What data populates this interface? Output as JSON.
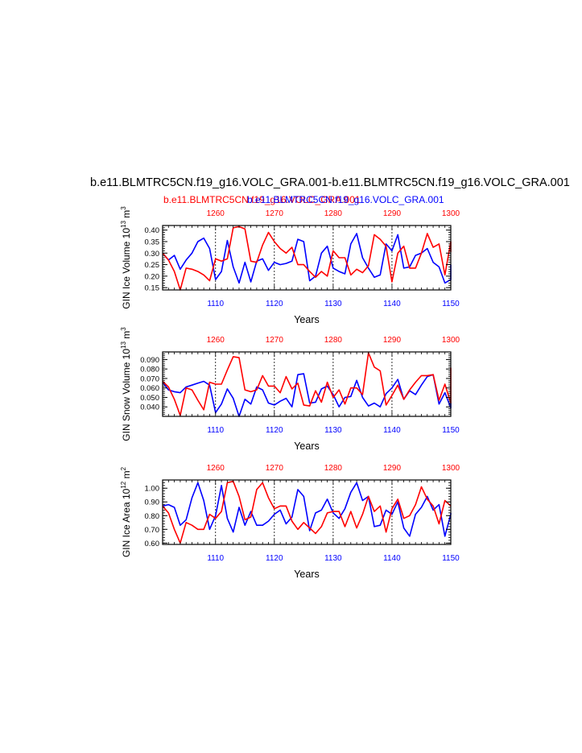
{
  "main_title": "b.e11.BLMTRC5CN.f19_g16.VOLC_GRA.001-b.e11.BLMTRC5CN.f19_g16.VOLC_GRA.001",
  "subtitle_red": "b.e11.BLMTRC5CN.f19_g16.VOLC_GRA.001",
  "subtitle_blue": "b.e11.BLMTRC5CN.f19_g16.VOLC_GRA.001",
  "colors": {
    "red": "#ff0000",
    "blue": "#0000ff"
  },
  "chart_data": [
    {
      "type": "line",
      "ylabel": "GIN Ice Volume 10",
      "ylabel_sup": "13",
      "ylabel_unit": " m",
      "ylabel_unit_sup": "3",
      "xlabel": "Years",
      "ylim": [
        0.14,
        0.42
      ],
      "yticks": [
        "0.15",
        "0.20",
        "0.25",
        "0.30",
        "0.35",
        "0.40"
      ],
      "ytick_values": [
        0.15,
        0.2,
        0.25,
        0.3,
        0.35,
        0.4
      ],
      "bottom_axis": {
        "range": [
          1101,
          1150
        ],
        "ticks": [
          "1110",
          "1120",
          "1130",
          "1140",
          "1150"
        ],
        "tick_values": [
          1110,
          1120,
          1130,
          1140,
          1150
        ]
      },
      "top_axis": {
        "range": [
          1251,
          1300
        ],
        "ticks": [
          "1260",
          "1270",
          "1280",
          "1290",
          "1300"
        ],
        "tick_values": [
          1260,
          1270,
          1280,
          1290,
          1300
        ]
      },
      "series": [
        {
          "color": "blue",
          "axis": "bottom",
          "x_start": 1101,
          "values": [
            0.3,
            0.27,
            0.29,
            0.23,
            0.27,
            0.3,
            0.35,
            0.365,
            0.32,
            0.185,
            0.22,
            0.355,
            0.24,
            0.17,
            0.26,
            0.175,
            0.265,
            0.275,
            0.225,
            0.26,
            0.25,
            0.255,
            0.265,
            0.36,
            0.35,
            0.18,
            0.2,
            0.3,
            0.33,
            0.235,
            0.22,
            0.21,
            0.34,
            0.385,
            0.28,
            0.235,
            0.195,
            0.205,
            0.34,
            0.31,
            0.38,
            0.235,
            0.24,
            0.29,
            0.3,
            0.32,
            0.26,
            0.24,
            0.17,
            0.185,
            0.25
          ]
        },
        {
          "color": "red",
          "axis": "top",
          "x_start": 1251,
          "values": [
            0.3,
            0.27,
            0.22,
            0.14,
            0.235,
            0.23,
            0.22,
            0.205,
            0.18,
            0.275,
            0.265,
            0.275,
            0.41,
            0.415,
            0.405,
            0.265,
            0.26,
            0.335,
            0.39,
            0.35,
            0.32,
            0.3,
            0.325,
            0.25,
            0.25,
            0.22,
            0.195,
            0.22,
            0.2,
            0.31,
            0.28,
            0.28,
            0.205,
            0.23,
            0.215,
            0.245,
            0.38,
            0.36,
            0.33,
            0.175,
            0.3,
            0.33,
            0.235,
            0.235,
            0.3,
            0.385,
            0.325,
            0.34,
            0.205,
            0.35,
            0.305
          ]
        }
      ]
    },
    {
      "type": "line",
      "ylabel": "GIN Snow Volume 10",
      "ylabel_sup": "13",
      "ylabel_unit": " m",
      "ylabel_unit_sup": "3",
      "xlabel": "Years",
      "ylim": [
        0.03,
        0.098
      ],
      "yticks": [
        "0.040",
        "0.050",
        "0.060",
        "0.070",
        "0.080",
        "0.090"
      ],
      "ytick_values": [
        0.04,
        0.05,
        0.06,
        0.07,
        0.08,
        0.09
      ],
      "bottom_axis": {
        "range": [
          1101,
          1150
        ],
        "ticks": [
          "1110",
          "1120",
          "1130",
          "1140",
          "1150"
        ],
        "tick_values": [
          1110,
          1120,
          1130,
          1140,
          1150
        ]
      },
      "top_axis": {
        "range": [
          1251,
          1300
        ],
        "ticks": [
          "1260",
          "1270",
          "1280",
          "1290",
          "1300"
        ],
        "tick_values": [
          1260,
          1270,
          1280,
          1290,
          1300
        ]
      },
      "series": [
        {
          "color": "blue",
          "axis": "bottom",
          "x_start": 1101,
          "values": [
            0.066,
            0.058,
            0.056,
            0.055,
            0.061,
            0.063,
            0.065,
            0.067,
            0.063,
            0.034,
            0.043,
            0.059,
            0.049,
            0.03,
            0.048,
            0.043,
            0.061,
            0.058,
            0.044,
            0.042,
            0.046,
            0.049,
            0.04,
            0.074,
            0.075,
            0.044,
            0.045,
            0.059,
            0.062,
            0.053,
            0.04,
            0.05,
            0.051,
            0.068,
            0.05,
            0.041,
            0.044,
            0.04,
            0.054,
            0.06,
            0.069,
            0.048,
            0.057,
            0.053,
            0.063,
            0.072,
            0.074,
            0.043,
            0.055,
            0.039,
            0.04,
            0.044
          ]
        },
        {
          "color": "red",
          "axis": "top",
          "x_start": 1251,
          "values": [
            0.067,
            0.061,
            0.048,
            0.031,
            0.06,
            0.058,
            0.047,
            0.037,
            0.066,
            0.064,
            0.064,
            0.079,
            0.093,
            0.092,
            0.058,
            0.056,
            0.058,
            0.073,
            0.062,
            0.062,
            0.055,
            0.072,
            0.059,
            0.065,
            0.042,
            0.041,
            0.057,
            0.045,
            0.066,
            0.05,
            0.058,
            0.043,
            0.06,
            0.06,
            0.053,
            0.097,
            0.082,
            0.078,
            0.042,
            0.052,
            0.063,
            0.048,
            0.058,
            0.066,
            0.073,
            0.073,
            0.074,
            0.047,
            0.064,
            0.044,
            0.081,
            0.06
          ]
        }
      ]
    },
    {
      "type": "line",
      "ylabel": "GIN Ice Area 10",
      "ylabel_sup": "12",
      "ylabel_unit": " m",
      "ylabel_unit_sup": "2",
      "xlabel": "Years",
      "ylim": [
        0.59,
        1.06
      ],
      "yticks": [
        "0.60",
        "0.70",
        "0.80",
        "0.90",
        "1.00"
      ],
      "ytick_values": [
        0.6,
        0.7,
        0.8,
        0.9,
        1.0
      ],
      "bottom_axis": {
        "range": [
          1101,
          1150
        ],
        "ticks": [
          "1110",
          "1120",
          "1130",
          "1140",
          "1150"
        ],
        "tick_values": [
          1110,
          1120,
          1130,
          1140,
          1150
        ]
      },
      "top_axis": {
        "range": [
          1251,
          1300
        ],
        "ticks": [
          "1260",
          "1270",
          "1280",
          "1290",
          "1300"
        ],
        "tick_values": [
          1260,
          1270,
          1280,
          1290,
          1300
        ]
      },
      "series": [
        {
          "color": "blue",
          "axis": "bottom",
          "x_start": 1101,
          "values": [
            0.87,
            0.88,
            0.86,
            0.73,
            0.77,
            0.93,
            1.04,
            0.91,
            0.7,
            0.8,
            1.02,
            0.78,
            0.68,
            0.86,
            0.73,
            0.83,
            0.73,
            0.73,
            0.76,
            0.81,
            0.84,
            0.74,
            0.79,
            0.99,
            0.94,
            0.69,
            0.82,
            0.84,
            0.92,
            0.82,
            0.78,
            0.85,
            0.97,
            1.04,
            0.91,
            0.94,
            0.72,
            0.73,
            0.84,
            0.81,
            0.9,
            0.71,
            0.65,
            0.81,
            0.86,
            0.94,
            0.84,
            0.88,
            0.65,
            0.81,
            0.82
          ]
        },
        {
          "color": "red",
          "axis": "top",
          "x_start": 1251,
          "values": [
            0.87,
            0.82,
            0.7,
            0.6,
            0.75,
            0.73,
            0.7,
            0.7,
            0.81,
            0.78,
            0.83,
            1.04,
            1.05,
            0.94,
            0.77,
            0.79,
            0.99,
            1.04,
            0.93,
            0.85,
            0.87,
            0.87,
            0.76,
            0.7,
            0.75,
            0.71,
            0.67,
            0.72,
            0.82,
            0.83,
            0.83,
            0.72,
            0.83,
            0.71,
            0.81,
            0.94,
            0.83,
            0.87,
            0.68,
            0.85,
            0.92,
            0.78,
            0.8,
            0.88,
            1.01,
            0.92,
            0.87,
            0.74,
            0.91,
            0.87
          ]
        }
      ]
    }
  ]
}
